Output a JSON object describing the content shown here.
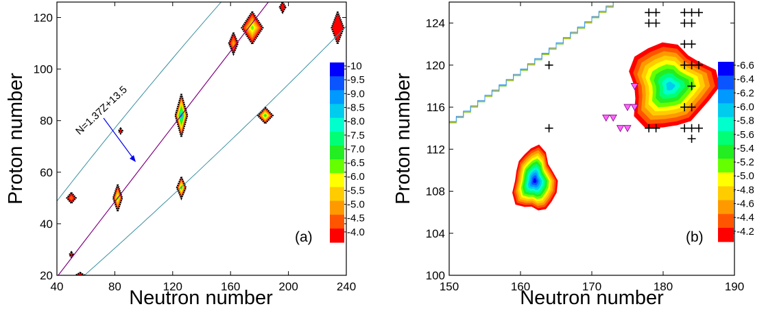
{
  "chart_data": [
    {
      "type": "heatmap",
      "panel_label": "(a)",
      "xlabel": "Neutron number",
      "ylabel": "Proton number",
      "xlim": [
        40,
        240
      ],
      "ylim": [
        20,
        126
      ],
      "xticks": [
        "40",
        "80",
        "120",
        "160",
        "200",
        "240"
      ],
      "yticks": [
        "20",
        "40",
        "60",
        "80",
        "100",
        "120"
      ],
      "colorbar": {
        "labels": [
          "-10",
          "-9.5",
          "-9.0",
          "-8.5",
          "-8.0",
          "-7.5",
          "-7.0",
          "-6.5",
          "-6.0",
          "-5.5",
          "-5.0",
          "-4.5",
          "-4.0"
        ],
        "colors": [
          "#0000ff",
          "#0a55ff",
          "#0099ff",
          "#00ccee",
          "#00ffcc",
          "#00ff77",
          "#22ee22",
          "#66ff00",
          "#ffff00",
          "#ffcc00",
          "#ff9900",
          "#ff5500",
          "#ff0000"
        ]
      },
      "annotation": "N=1.37Z+13.5",
      "line": {
        "slope": 1.37,
        "intercept": 13.5
      },
      "grid": false,
      "islands": [
        {
          "n": 50,
          "z": 50,
          "level": -4.5,
          "sn": 3,
          "sz": 2
        },
        {
          "n": 82,
          "z": 50,
          "level": -6.5,
          "sn": 3,
          "sz": 5
        },
        {
          "n": 126,
          "z": 82,
          "level": -9.0,
          "sn": 4,
          "sz": 8
        },
        {
          "n": 126,
          "z": 54,
          "level": -7.0,
          "sn": 3,
          "sz": 4
        },
        {
          "n": 184,
          "z": 82,
          "level": -7.0,
          "sn": 5,
          "sz": 3
        },
        {
          "n": 175,
          "z": 116,
          "level": -6.5,
          "sn": 7,
          "sz": 6
        },
        {
          "n": 162,
          "z": 110,
          "level": -5.0,
          "sn": 3,
          "sz": 4
        },
        {
          "n": 196,
          "z": 124,
          "level": -4.0,
          "sn": 2,
          "sz": 2
        },
        {
          "n": 234,
          "z": 116,
          "level": -4.0,
          "sn": 4,
          "sz": 6
        },
        {
          "n": 84,
          "z": 76,
          "level": -4.0,
          "sn": 1,
          "sz": 1
        },
        {
          "n": 50,
          "z": 28,
          "level": -4.0,
          "sn": 1,
          "sz": 1
        },
        {
          "n": 56,
          "z": 20,
          "level": -4.0,
          "sn": 3,
          "sz": 1
        }
      ]
    },
    {
      "type": "heatmap",
      "panel_label": "(b)",
      "xlabel": "Neutron number",
      "ylabel": "Proton number",
      "xlim": [
        150,
        190
      ],
      "ylim": [
        100,
        126
      ],
      "xticks": [
        "150",
        "160",
        "170",
        "180",
        "190"
      ],
      "yticks": [
        "100",
        "104",
        "108",
        "112",
        "116",
        "120",
        "124"
      ],
      "colorbar": {
        "labels": [
          "-6.6",
          "-6.4",
          "-6.2",
          "-6.0",
          "-5.8",
          "-5.6",
          "-5.4",
          "-5.2",
          "-5.0",
          "-4.8",
          "-4.6",
          "-4.4",
          "-4.2"
        ],
        "colors": [
          "#0000ff",
          "#0a55ff",
          "#0099ff",
          "#00ccee",
          "#00ffcc",
          "#00ff77",
          "#22ee22",
          "#66ff00",
          "#ffff00",
          "#ffcc00",
          "#ff9900",
          "#ff5500",
          "#ff0000"
        ]
      },
      "grid": false,
      "islands": [
        {
          "n": 162,
          "z": 109,
          "level": -6.6,
          "sn": 3,
          "sz": 3
        },
        {
          "n": 181,
          "z": 118,
          "level": -6.0,
          "sn": 6,
          "sz": 4
        }
      ],
      "plus_markers": [
        [
          164,
          114
        ],
        [
          164,
          120
        ],
        [
          178,
          114
        ],
        [
          179,
          114
        ],
        [
          178,
          124
        ],
        [
          179,
          124
        ],
        [
          178,
          125
        ],
        [
          179,
          125
        ],
        [
          183,
          114
        ],
        [
          184,
          114
        ],
        [
          185,
          114
        ],
        [
          183,
          116
        ],
        [
          184,
          116
        ],
        [
          184,
          118
        ],
        [
          183,
          120
        ],
        [
          184,
          120
        ],
        [
          185,
          120
        ],
        [
          183,
          122
        ],
        [
          184,
          122
        ],
        [
          183,
          124
        ],
        [
          184,
          124
        ],
        [
          183,
          125
        ],
        [
          184,
          125
        ],
        [
          185,
          125
        ],
        [
          184,
          113
        ]
      ],
      "triangle_markers": [
        [
          172,
          115
        ],
        [
          173,
          115
        ],
        [
          174,
          114
        ],
        [
          175,
          114
        ],
        [
          175,
          116
        ],
        [
          176,
          116
        ],
        [
          176,
          118
        ]
      ]
    }
  ]
}
